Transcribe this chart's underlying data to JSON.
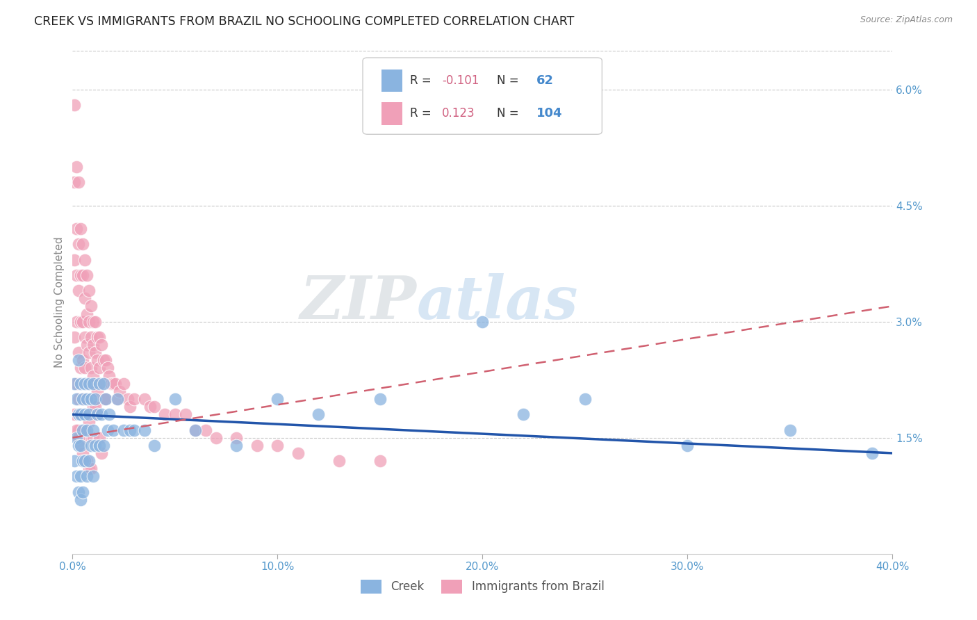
{
  "title": "CREEK VS IMMIGRANTS FROM BRAZIL NO SCHOOLING COMPLETED CORRELATION CHART",
  "source": "Source: ZipAtlas.com",
  "ylabel": "No Schooling Completed",
  "xlim": [
    0.0,
    0.4
  ],
  "ylim": [
    0.0,
    0.065
  ],
  "xticks": [
    0.0,
    0.1,
    0.2,
    0.3,
    0.4
  ],
  "xticklabels": [
    "0.0%",
    "10.0%",
    "20.0%",
    "30.0%",
    "40.0%"
  ],
  "yticks_right": [
    0.0,
    0.015,
    0.03,
    0.045,
    0.06
  ],
  "yticklabels_right": [
    "",
    "1.5%",
    "3.0%",
    "4.5%",
    "6.0%"
  ],
  "grid_color": "#c8c8c8",
  "background_color": "#ffffff",
  "creek_color": "#8ab4e0",
  "brazil_color": "#f0a0b8",
  "creek_line_color": "#2255aa",
  "brazil_line_color": "#d0608080",
  "creek_R": -0.101,
  "creek_N": 62,
  "brazil_R": 0.123,
  "brazil_N": 104,
  "watermark": "ZIPatlas",
  "legend_label1": "Creek",
  "legend_label2": "Immigrants from Brazil",
  "creek_trend_x0": 0.0,
  "creek_trend_y0": 0.018,
  "creek_trend_x1": 0.4,
  "creek_trend_y1": 0.013,
  "brazil_trend_x0": 0.0,
  "brazil_trend_y0": 0.015,
  "brazil_trend_x1": 0.4,
  "brazil_trend_y1": 0.032,
  "creek_scatter_x": [
    0.001,
    0.001,
    0.002,
    0.002,
    0.002,
    0.003,
    0.003,
    0.003,
    0.003,
    0.004,
    0.004,
    0.004,
    0.004,
    0.004,
    0.005,
    0.005,
    0.005,
    0.005,
    0.006,
    0.006,
    0.006,
    0.007,
    0.007,
    0.007,
    0.008,
    0.008,
    0.008,
    0.009,
    0.009,
    0.01,
    0.01,
    0.01,
    0.011,
    0.011,
    0.012,
    0.013,
    0.013,
    0.014,
    0.015,
    0.015,
    0.016,
    0.017,
    0.018,
    0.02,
    0.022,
    0.025,
    0.028,
    0.03,
    0.035,
    0.04,
    0.05,
    0.06,
    0.08,
    0.1,
    0.12,
    0.15,
    0.2,
    0.22,
    0.25,
    0.3,
    0.35,
    0.39
  ],
  "creek_scatter_y": [
    0.022,
    0.012,
    0.02,
    0.015,
    0.01,
    0.025,
    0.018,
    0.014,
    0.008,
    0.022,
    0.018,
    0.014,
    0.01,
    0.007,
    0.02,
    0.016,
    0.012,
    0.008,
    0.022,
    0.018,
    0.012,
    0.02,
    0.016,
    0.01,
    0.022,
    0.018,
    0.012,
    0.02,
    0.014,
    0.022,
    0.016,
    0.01,
    0.02,
    0.014,
    0.018,
    0.022,
    0.014,
    0.018,
    0.022,
    0.014,
    0.02,
    0.016,
    0.018,
    0.016,
    0.02,
    0.016,
    0.016,
    0.016,
    0.016,
    0.014,
    0.02,
    0.016,
    0.014,
    0.02,
    0.018,
    0.02,
    0.03,
    0.018,
    0.02,
    0.014,
    0.016,
    0.013
  ],
  "brazil_scatter_x": [
    0.001,
    0.001,
    0.001,
    0.001,
    0.002,
    0.002,
    0.002,
    0.002,
    0.002,
    0.003,
    0.003,
    0.003,
    0.003,
    0.003,
    0.003,
    0.004,
    0.004,
    0.004,
    0.004,
    0.004,
    0.005,
    0.005,
    0.005,
    0.005,
    0.005,
    0.005,
    0.006,
    0.006,
    0.006,
    0.006,
    0.006,
    0.006,
    0.007,
    0.007,
    0.007,
    0.007,
    0.007,
    0.008,
    0.008,
    0.008,
    0.008,
    0.008,
    0.009,
    0.009,
    0.009,
    0.009,
    0.01,
    0.01,
    0.01,
    0.01,
    0.011,
    0.011,
    0.011,
    0.012,
    0.012,
    0.012,
    0.013,
    0.013,
    0.014,
    0.014,
    0.015,
    0.015,
    0.016,
    0.016,
    0.017,
    0.018,
    0.019,
    0.02,
    0.021,
    0.022,
    0.023,
    0.025,
    0.027,
    0.028,
    0.03,
    0.035,
    0.038,
    0.04,
    0.045,
    0.05,
    0.055,
    0.06,
    0.065,
    0.07,
    0.08,
    0.09,
    0.1,
    0.11,
    0.13,
    0.15,
    0.001,
    0.002,
    0.003,
    0.004,
    0.005,
    0.006,
    0.007,
    0.008,
    0.009,
    0.01,
    0.011,
    0.012,
    0.013,
    0.014
  ],
  "brazil_scatter_y": [
    0.058,
    0.048,
    0.038,
    0.028,
    0.05,
    0.042,
    0.036,
    0.03,
    0.022,
    0.048,
    0.04,
    0.034,
    0.026,
    0.02,
    0.016,
    0.042,
    0.036,
    0.03,
    0.024,
    0.018,
    0.04,
    0.036,
    0.03,
    0.025,
    0.02,
    0.015,
    0.038,
    0.033,
    0.028,
    0.024,
    0.02,
    0.016,
    0.036,
    0.031,
    0.027,
    0.022,
    0.018,
    0.034,
    0.03,
    0.026,
    0.022,
    0.017,
    0.032,
    0.028,
    0.024,
    0.02,
    0.03,
    0.027,
    0.023,
    0.019,
    0.03,
    0.026,
    0.022,
    0.028,
    0.025,
    0.021,
    0.028,
    0.024,
    0.027,
    0.022,
    0.025,
    0.02,
    0.025,
    0.02,
    0.024,
    0.023,
    0.022,
    0.022,
    0.022,
    0.02,
    0.021,
    0.022,
    0.02,
    0.019,
    0.02,
    0.02,
    0.019,
    0.019,
    0.018,
    0.018,
    0.018,
    0.016,
    0.016,
    0.015,
    0.015,
    0.014,
    0.014,
    0.013,
    0.012,
    0.012,
    0.018,
    0.016,
    0.015,
    0.014,
    0.013,
    0.012,
    0.012,
    0.011,
    0.011,
    0.015,
    0.019,
    0.018,
    0.015,
    0.013
  ]
}
